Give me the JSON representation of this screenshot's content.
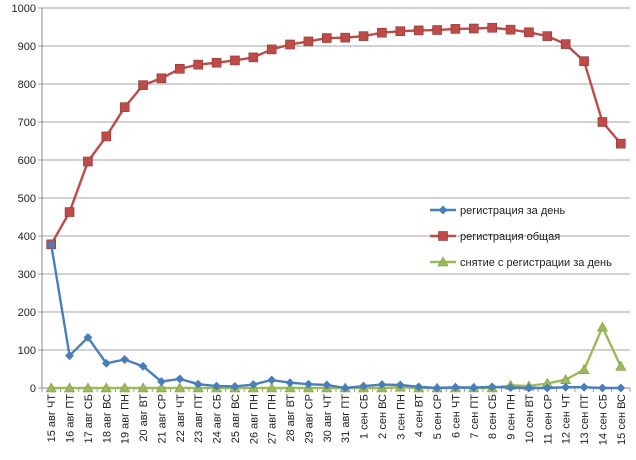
{
  "chart_data": {
    "type": "line",
    "title": "",
    "xlabel": "",
    "ylabel": "",
    "ylim": [
      0,
      1000
    ],
    "yticks": [
      0,
      100,
      200,
      300,
      400,
      500,
      600,
      700,
      800,
      900,
      1000
    ],
    "grid": true,
    "legend_position": "right",
    "categories": [
      "15 авг ЧТ",
      "16 авг ПТ",
      "17 авг СБ",
      "18 авг ВС",
      "19 авг ПН",
      "20 авг ВТ",
      "21 авг СР",
      "22 авг ЧТ",
      "23 авг ПТ",
      "24 авг СБ",
      "25 авг ВС",
      "26 авг ПН",
      "27 авг ПН",
      "28 авг ВТ",
      "29 авг СР",
      "30 авг ЧТ",
      "31 авг ПТ",
      "1 сен СБ",
      "2 сен ВС",
      "3 сен ПН",
      "4 сен ВТ",
      "5 сен СР",
      "6 сен ЧТ",
      "7 сен ПТ",
      "8 сен СБ",
      "9 сен ПН",
      "10 сен ВТ",
      "11 сен СР",
      "12 сен ЧТ",
      "13 сен ПТ",
      "14 сен СБ",
      "15 сен ВС"
    ],
    "series": [
      {
        "name": "регистрация за день",
        "color": "#4a7ebb",
        "marker": "diamond",
        "values": [
          378,
          85,
          133,
          65,
          75,
          57,
          17,
          24,
          10,
          5,
          4,
          9,
          21,
          14,
          10,
          8,
          0,
          5,
          9,
          8,
          3,
          0,
          2,
          1,
          3,
          1,
          0,
          0,
          2,
          2,
          0,
          0
        ]
      },
      {
        "name": "регистрация общая",
        "color": "#be4b48",
        "marker": "square",
        "values": [
          378,
          463,
          596,
          662,
          739,
          797,
          815,
          840,
          851,
          856,
          862,
          870,
          891,
          904,
          912,
          921,
          922,
          926,
          935,
          939,
          941,
          942,
          945,
          946,
          948,
          943,
          936,
          926,
          905,
          860,
          700,
          643
        ]
      },
      {
        "name": "снятие с регистрации за день",
        "color": "#9bbb59",
        "marker": "triangle",
        "values": [
          0,
          0,
          0,
          0,
          0,
          0,
          0,
          0,
          0,
          0,
          0,
          0,
          0,
          0,
          0,
          0,
          0,
          0,
          0,
          2,
          0,
          0,
          0,
          0,
          0,
          7,
          5,
          12,
          22,
          48,
          160,
          57
        ]
      }
    ]
  }
}
